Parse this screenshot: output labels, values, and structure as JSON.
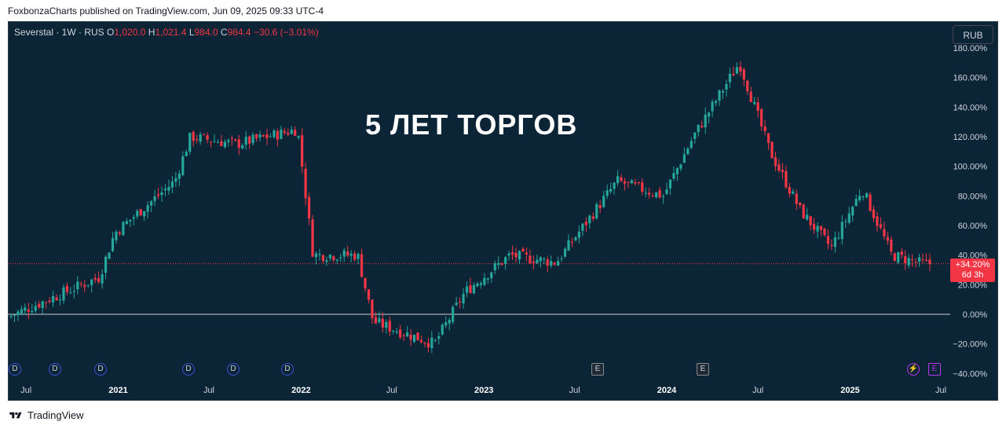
{
  "header": {
    "publish_line": "FoxbonzaCharts published on TradingView.com, Jun 09, 2025 09:33 UTC-4"
  },
  "legend": {
    "symbol": "Severstal · 1W · RUS",
    "o_label": "O",
    "o_value": "1,020.0",
    "h_label": "H",
    "h_value": "1,021.4",
    "l_label": "L",
    "l_value": "984.0",
    "c_label": "C",
    "c_value": "984.4",
    "change": "−30.6 (−3.01%)"
  },
  "currency_button": "RUB",
  "annotation": "5 ЛЕТ ТОРГОВ",
  "price_badge": {
    "value": "+34.20%",
    "countdown": "6d 3h"
  },
  "footer": {
    "brand": "TradingView"
  },
  "colors": {
    "up": "#26a69a",
    "down": "#f23645",
    "background": "#0b2436",
    "zero_line": "#c8d0d8",
    "current_line": "#f23645"
  },
  "events": [
    {
      "type": "dividend",
      "label": "D"
    },
    {
      "type": "dividend",
      "label": "D"
    },
    {
      "type": "dividend",
      "label": "D"
    },
    {
      "type": "dividend",
      "label": "D"
    },
    {
      "type": "dividend",
      "label": "D"
    },
    {
      "type": "dividend",
      "label": "D"
    },
    {
      "type": "earnings",
      "label": "E"
    },
    {
      "type": "earnings",
      "label": "E"
    },
    {
      "type": "split",
      "label": "⚡"
    },
    {
      "type": "earnings-upcoming",
      "label": "E"
    }
  ],
  "chart_data": {
    "type": "candlestick",
    "scale": "percent",
    "y_axis": {
      "ticks": [
        "180.00%",
        "160.00%",
        "140.00%",
        "120.00%",
        "100.00%",
        "80.00%",
        "60.00%",
        "40.00%",
        "20.00%",
        "0.00%",
        "−20.00%",
        "−40.00%"
      ],
      "ylim": [
        -40,
        180
      ]
    },
    "x_axis": {
      "ticks": [
        "Jul",
        "2021",
        "Jul",
        "2022",
        "Jul",
        "2023",
        "Jul",
        "2024",
        "Jul",
        "2025",
        "Jul"
      ],
      "range": [
        "2020-06",
        "2025-07"
      ]
    },
    "current_value_pct": 34.2,
    "zero_line": true,
    "key_points": [
      {
        "date": "2020-06",
        "pct": -2
      },
      {
        "date": "2020-12",
        "pct": 25
      },
      {
        "date": "2021-01",
        "pct": 55
      },
      {
        "date": "2021-05",
        "pct": 90
      },
      {
        "date": "2021-06",
        "pct": 120
      },
      {
        "date": "2021-09",
        "pct": 115
      },
      {
        "date": "2022-01",
        "pct": 125
      },
      {
        "date": "2022-02",
        "pct": 40
      },
      {
        "date": "2022-05",
        "pct": 40
      },
      {
        "date": "2022-06",
        "pct": -5
      },
      {
        "date": "2022-10",
        "pct": -20
      },
      {
        "date": "2022-12",
        "pct": 15
      },
      {
        "date": "2023-03",
        "pct": 40
      },
      {
        "date": "2023-06",
        "pct": 35
      },
      {
        "date": "2023-10",
        "pct": 90
      },
      {
        "date": "2024-01",
        "pct": 80
      },
      {
        "date": "2024-03",
        "pct": 120
      },
      {
        "date": "2024-06",
        "pct": 170
      },
      {
        "date": "2024-08",
        "pct": 110
      },
      {
        "date": "2024-10",
        "pct": 70
      },
      {
        "date": "2024-12",
        "pct": 45
      },
      {
        "date": "2025-02",
        "pct": 85
      },
      {
        "date": "2025-04",
        "pct": 40
      },
      {
        "date": "2025-06",
        "pct": 34.2
      }
    ]
  }
}
